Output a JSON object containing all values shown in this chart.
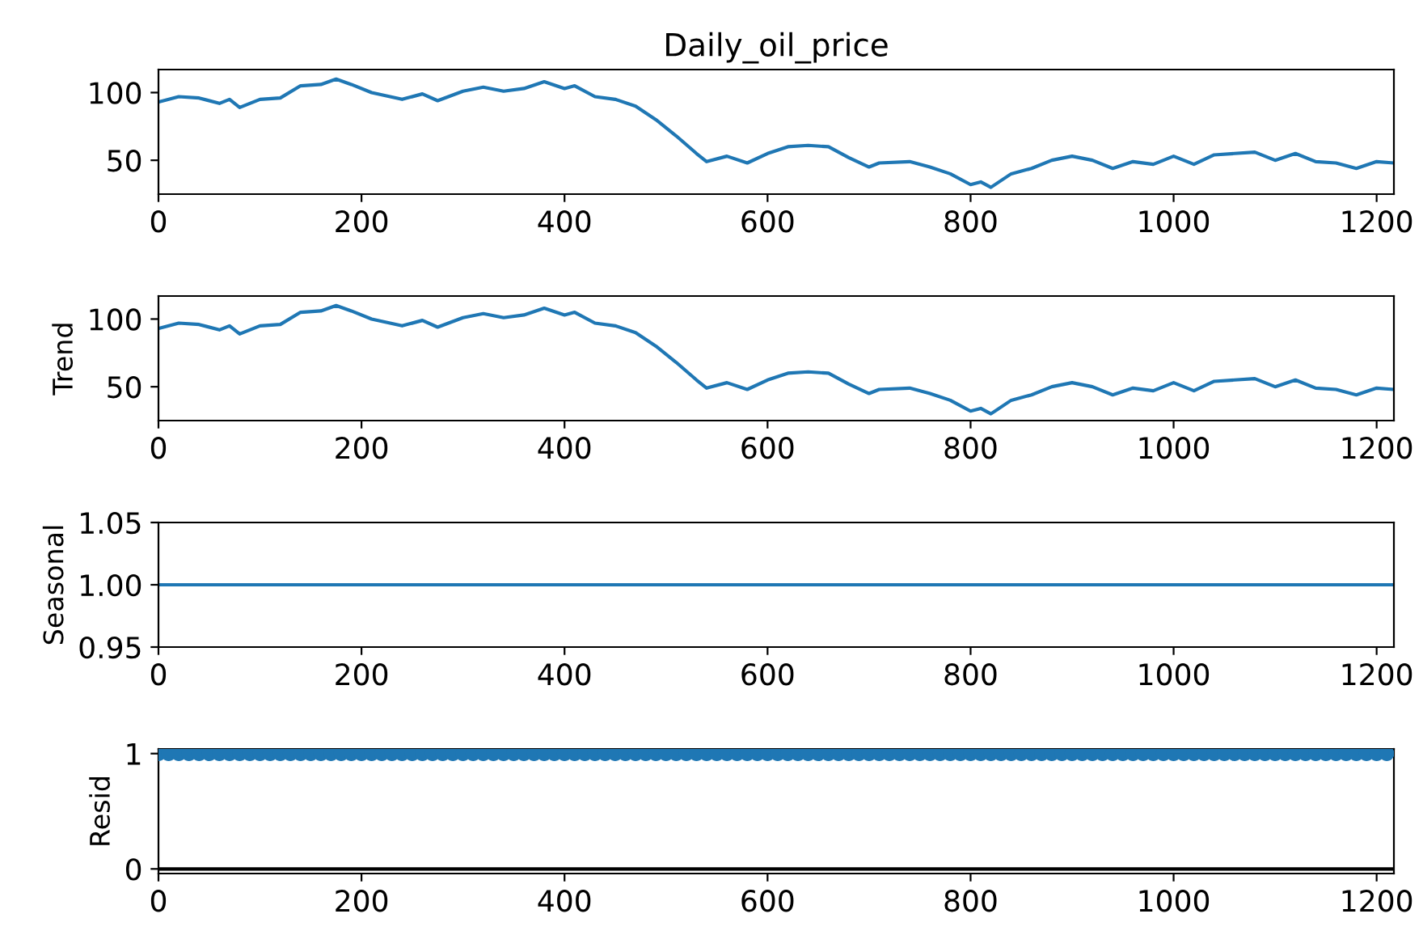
{
  "chart_data": [
    {
      "type": "line",
      "title": "Daily_oil_price",
      "xlim": [
        0,
        1217
      ],
      "xticks": [
        0,
        200,
        400,
        600,
        800,
        1000,
        1200
      ],
      "ylim": [
        25,
        117
      ],
      "yticks": [
        50,
        100
      ],
      "grid": false,
      "legend": false,
      "series": [
        {
          "color": "#1f77b4",
          "x": [
            0,
            20,
            40,
            60,
            70,
            80,
            100,
            120,
            140,
            160,
            175,
            190,
            210,
            240,
            260,
            275,
            300,
            320,
            340,
            360,
            380,
            400,
            410,
            430,
            450,
            470,
            490,
            510,
            530,
            540,
            560,
            580,
            600,
            620,
            640,
            660,
            680,
            700,
            710,
            740,
            760,
            780,
            800,
            810,
            820,
            840,
            860,
            880,
            900,
            920,
            940,
            960,
            980,
            1000,
            1020,
            1040,
            1060,
            1080,
            1100,
            1120,
            1140,
            1160,
            1180,
            1200,
            1217
          ],
          "values": [
            93,
            97,
            96,
            92,
            95,
            89,
            95,
            96,
            105,
            106,
            110,
            106,
            100,
            95,
            99,
            94,
            101,
            104,
            101,
            103,
            108,
            103,
            105,
            97,
            95,
            90,
            80,
            68,
            55,
            49,
            53,
            48,
            55,
            60,
            61,
            60,
            52,
            45,
            48,
            49,
            45,
            40,
            32,
            34,
            30,
            40,
            44,
            50,
            53,
            50,
            44,
            49,
            47,
            53,
            47,
            54,
            55,
            56,
            50,
            55,
            49,
            48,
            44,
            49,
            48
          ]
        }
      ]
    },
    {
      "type": "line",
      "ylabel": "Trend",
      "xlim": [
        0,
        1217
      ],
      "xticks": [
        0,
        200,
        400,
        600,
        800,
        1000,
        1200
      ],
      "ylim": [
        25,
        117
      ],
      "yticks": [
        50,
        100
      ],
      "grid": false,
      "legend": false,
      "series": [
        {
          "color": "#1f77b4",
          "x": [
            0,
            20,
            40,
            60,
            70,
            80,
            100,
            120,
            140,
            160,
            175,
            190,
            210,
            240,
            260,
            275,
            300,
            320,
            340,
            360,
            380,
            400,
            410,
            430,
            450,
            470,
            490,
            510,
            530,
            540,
            560,
            580,
            600,
            620,
            640,
            660,
            680,
            700,
            710,
            740,
            760,
            780,
            800,
            810,
            820,
            840,
            860,
            880,
            900,
            920,
            940,
            960,
            980,
            1000,
            1020,
            1040,
            1060,
            1080,
            1100,
            1120,
            1140,
            1160,
            1180,
            1200,
            1217
          ],
          "values": [
            93,
            97,
            96,
            92,
            95,
            89,
            95,
            96,
            105,
            106,
            110,
            106,
            100,
            95,
            99,
            94,
            101,
            104,
            101,
            103,
            108,
            103,
            105,
            97,
            95,
            90,
            80,
            68,
            55,
            49,
            53,
            48,
            55,
            60,
            61,
            60,
            52,
            45,
            48,
            49,
            45,
            40,
            32,
            34,
            30,
            40,
            44,
            50,
            53,
            50,
            44,
            49,
            47,
            53,
            47,
            54,
            55,
            56,
            50,
            55,
            49,
            48,
            44,
            49,
            48
          ]
        }
      ]
    },
    {
      "type": "line",
      "ylabel": "Seasonal",
      "xlim": [
        0,
        1217
      ],
      "xticks": [
        0,
        200,
        400,
        600,
        800,
        1000,
        1200
      ],
      "ylim": [
        0.95,
        1.05
      ],
      "yticks": [
        {
          "value": 0.95,
          "label": "0.95"
        },
        {
          "value": 1.0,
          "label": "1.00"
        },
        {
          "value": 1.05,
          "label": "1.05"
        }
      ],
      "grid": false,
      "legend": false,
      "series": [
        {
          "color": "#1f77b4",
          "x": [
            0,
            1217
          ],
          "values": [
            1,
            1
          ]
        }
      ]
    },
    {
      "type": "scatter",
      "ylabel": "Resid",
      "xlim": [
        0,
        1217
      ],
      "xticks": [
        0,
        200,
        400,
        600,
        800,
        1000,
        1200
      ],
      "ylim": [
        -0.04,
        1.04
      ],
      "yticks": [
        0,
        1
      ],
      "grid": false,
      "legend": false,
      "marker": "circle",
      "ref_lines": [
        {
          "axis": "y",
          "value": 0,
          "color": "#000000"
        }
      ],
      "series": [
        {
          "color": "#1f77b4",
          "x": [
            0,
            10,
            20,
            30,
            40,
            50,
            60,
            70,
            80,
            90,
            100,
            110,
            120,
            130,
            140,
            150,
            160,
            170,
            180,
            190,
            200,
            210,
            220,
            230,
            240,
            250,
            260,
            270,
            280,
            290,
            300,
            310,
            320,
            330,
            340,
            350,
            360,
            370,
            380,
            390,
            400,
            410,
            420,
            430,
            440,
            450,
            460,
            470,
            480,
            490,
            500,
            510,
            520,
            530,
            540,
            550,
            560,
            570,
            580,
            590,
            600,
            610,
            620,
            630,
            640,
            650,
            660,
            670,
            680,
            690,
            700,
            710,
            720,
            730,
            740,
            750,
            760,
            770,
            780,
            790,
            800,
            810,
            820,
            830,
            840,
            850,
            860,
            870,
            880,
            890,
            900,
            910,
            920,
            930,
            940,
            950,
            960,
            970,
            980,
            990,
            1000,
            1010,
            1020,
            1030,
            1040,
            1050,
            1060,
            1070,
            1080,
            1090,
            1100,
            1110,
            1120,
            1130,
            1140,
            1150,
            1160,
            1170,
            1180,
            1190,
            1200,
            1210
          ],
          "values": [
            1,
            1,
            1,
            1,
            1,
            1,
            1,
            1,
            1,
            1,
            1,
            1,
            1,
            1,
            1,
            1,
            1,
            1,
            1,
            1,
            1,
            1,
            1,
            1,
            1,
            1,
            1,
            1,
            1,
            1,
            1,
            1,
            1,
            1,
            1,
            1,
            1,
            1,
            1,
            1,
            1,
            1,
            1,
            1,
            1,
            1,
            1,
            1,
            1,
            1,
            1,
            1,
            1,
            1,
            1,
            1,
            1,
            1,
            1,
            1,
            1,
            1,
            1,
            1,
            1,
            1,
            1,
            1,
            1,
            1,
            1,
            1,
            1,
            1,
            1,
            1,
            1,
            1,
            1,
            1,
            1,
            1,
            1,
            1,
            1,
            1,
            1,
            1,
            1,
            1,
            1,
            1,
            1,
            1,
            1,
            1,
            1,
            1,
            1,
            1,
            1,
            1,
            1,
            1,
            1,
            1,
            1,
            1,
            1,
            1,
            1,
            1,
            1,
            1,
            1,
            1,
            1,
            1,
            1,
            1,
            1,
            1
          ]
        }
      ]
    }
  ]
}
